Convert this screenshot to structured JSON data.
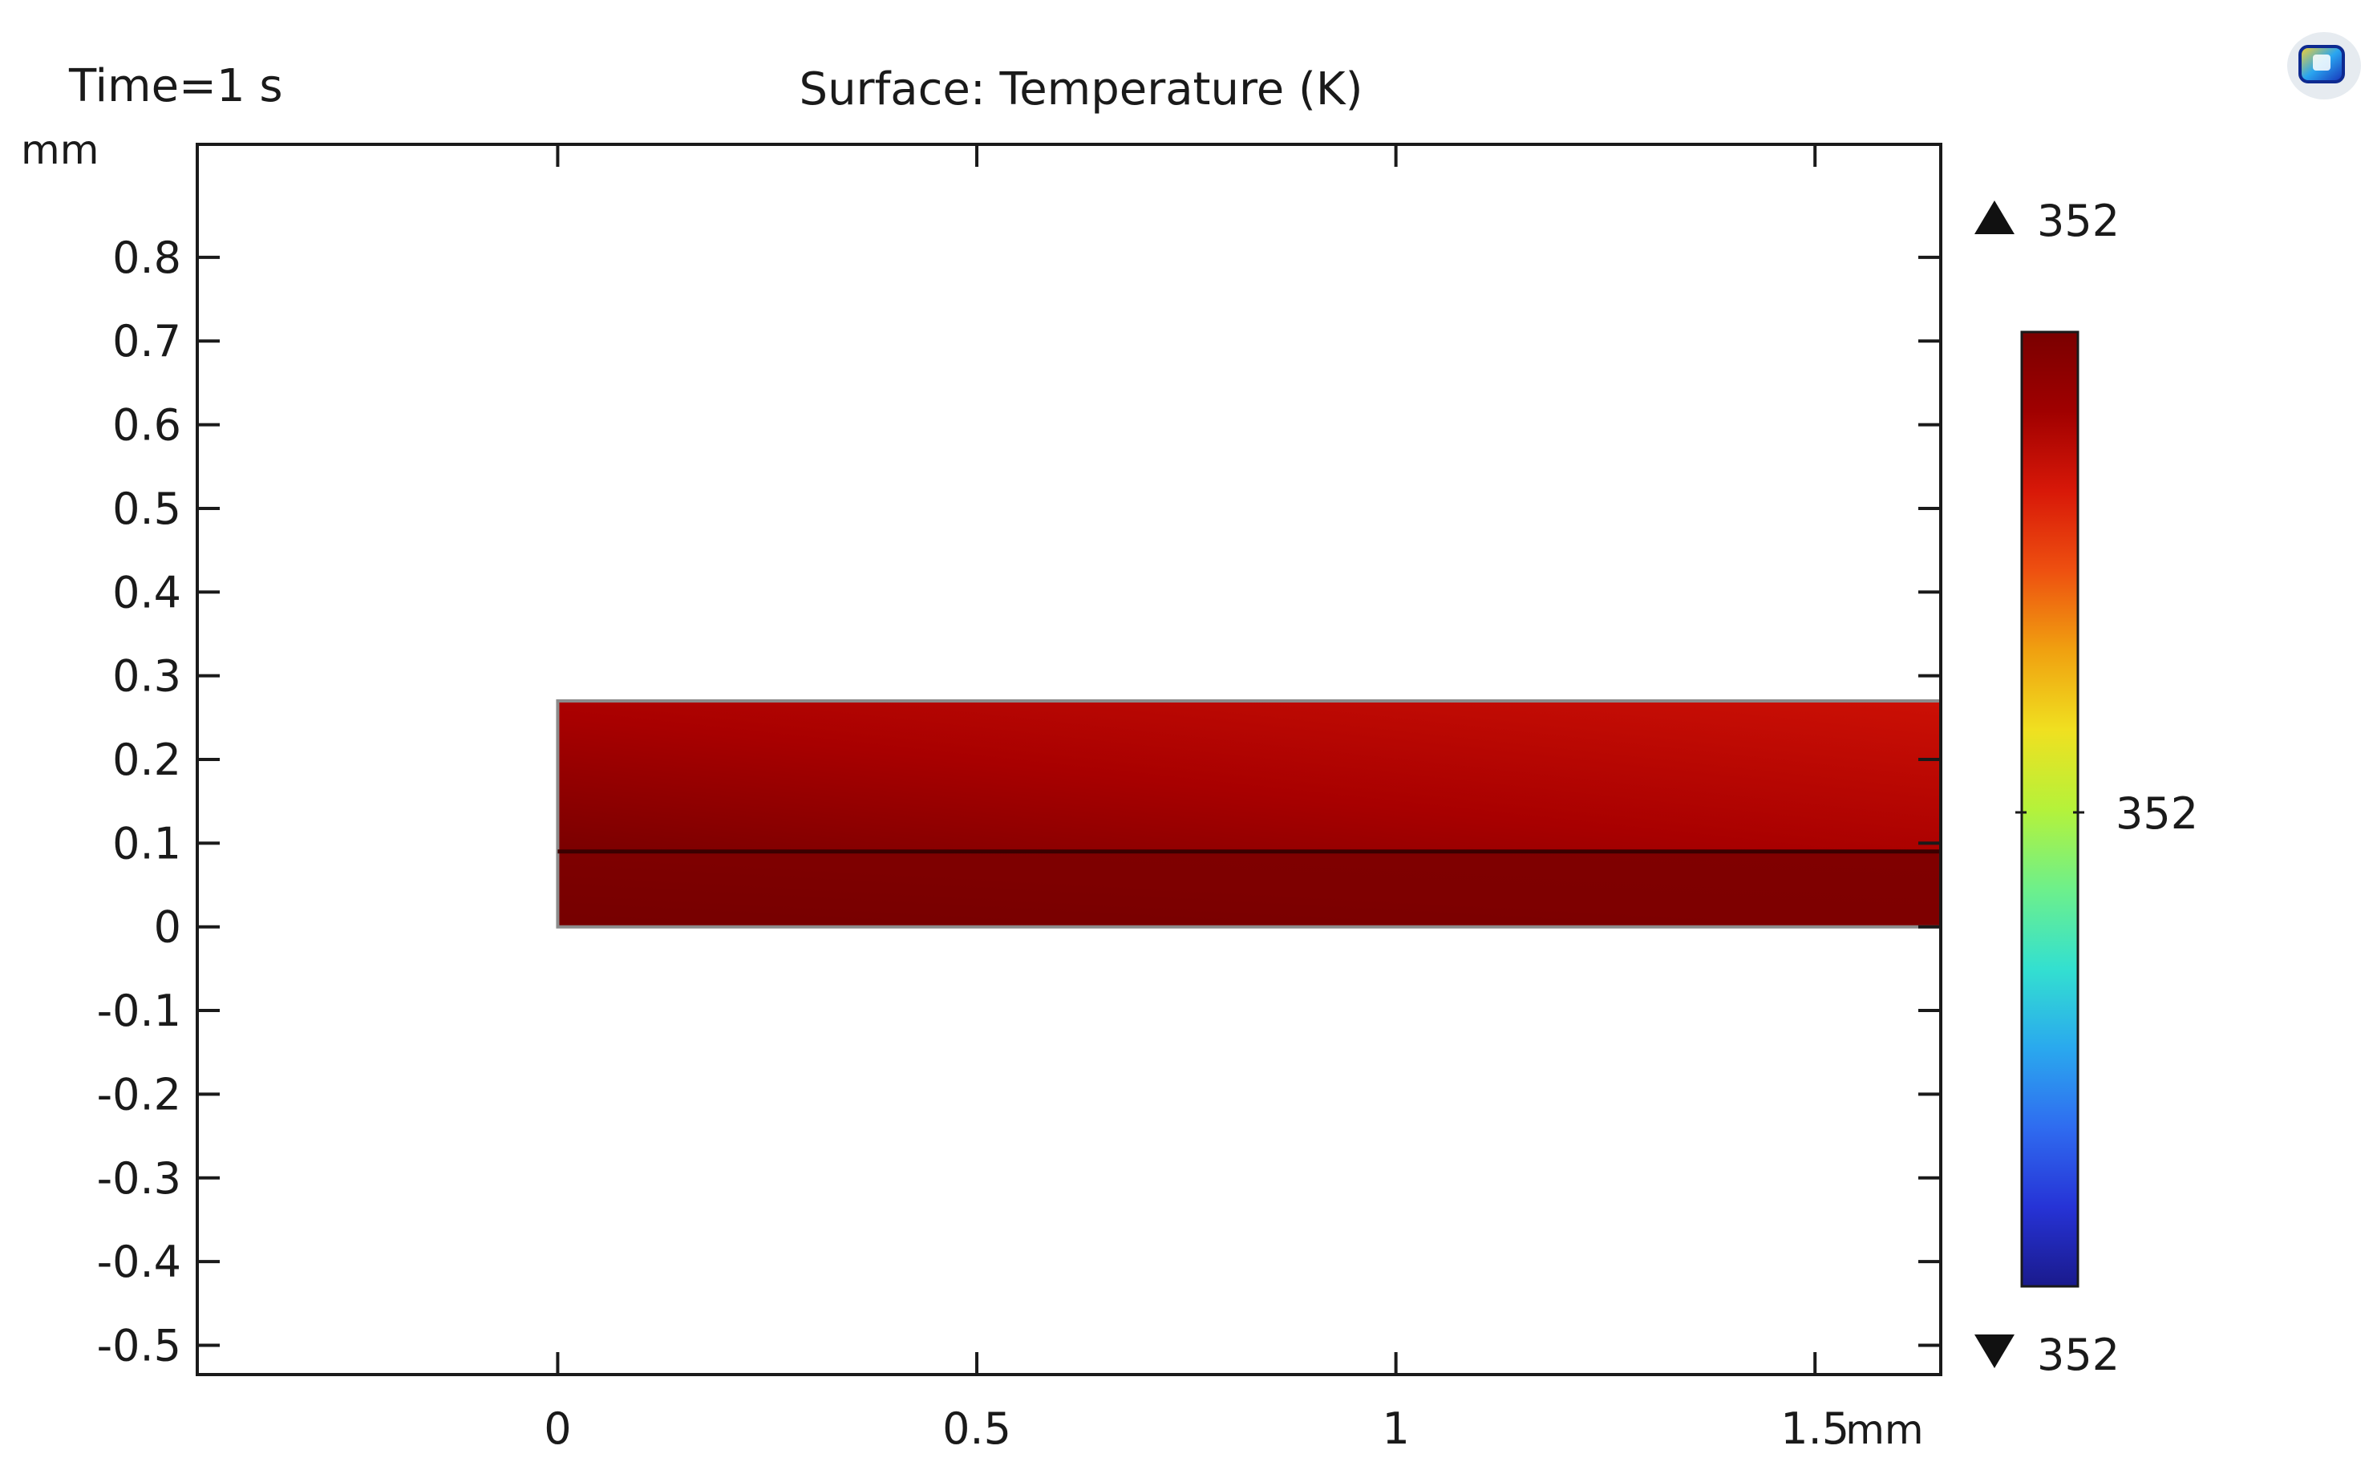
{
  "time_label": "Time=1 s",
  "title": "Surface: Temperature (K)",
  "x_unit": "mm",
  "y_unit": "mm",
  "chart_data": {
    "type": "heatmap",
    "title": "Surface: Temperature (K)",
    "time_label": "Time=1 s",
    "xlabel": "",
    "ylabel": "",
    "x_unit": "mm",
    "y_unit": "mm",
    "xlim": [
      -0.43,
      1.65
    ],
    "ylim": [
      -0.535,
      0.935
    ],
    "x_ticks": [
      {
        "value": 0,
        "label": "0"
      },
      {
        "value": 0.5,
        "label": "0.5"
      },
      {
        "value": 1,
        "label": "1"
      },
      {
        "value": 1.5,
        "label": "1.5"
      }
    ],
    "y_ticks": [
      {
        "value": 0.8,
        "label": "0.8"
      },
      {
        "value": 0.7,
        "label": "0.7"
      },
      {
        "value": 0.6,
        "label": "0.6"
      },
      {
        "value": 0.5,
        "label": "0.5"
      },
      {
        "value": 0.4,
        "label": "0.4"
      },
      {
        "value": 0.3,
        "label": "0.3"
      },
      {
        "value": 0.2,
        "label": "0.2"
      },
      {
        "value": 0.1,
        "label": "0.1"
      },
      {
        "value": 0,
        "label": "0"
      },
      {
        "value": -0.1,
        "label": "-0.1"
      },
      {
        "value": -0.2,
        "label": "-0.2"
      },
      {
        "value": -0.3,
        "label": "-0.3"
      },
      {
        "value": -0.4,
        "label": "-0.4"
      },
      {
        "value": -0.5,
        "label": "-0.5"
      }
    ],
    "domains": [
      {
        "x": [
          0,
          1.65
        ],
        "y": [
          0.09,
          0.27
        ],
        "color_bottom": "#7a0000",
        "color_top_left": "#a80000",
        "color_top_right": "#cc1005"
      },
      {
        "x": [
          0,
          1.65
        ],
        "y": [
          0,
          0.09
        ],
        "color_bottom": "#760000",
        "color_top_left": "#7e0000",
        "color_top_right": "#800000"
      }
    ],
    "interface_y": 0.09,
    "colorbar": {
      "max_label": "352",
      "min_label": "352",
      "mid_label": "352",
      "colormap": "Rainbow",
      "colors": [
        "#1a1a8c",
        "#2633d6",
        "#2f6cf0",
        "#2aa9ee",
        "#33e0d0",
        "#6ef08a",
        "#b5f23a",
        "#f0e020",
        "#f0a010",
        "#ee5010",
        "#d81808",
        "#a00000",
        "#7a0000"
      ]
    }
  }
}
